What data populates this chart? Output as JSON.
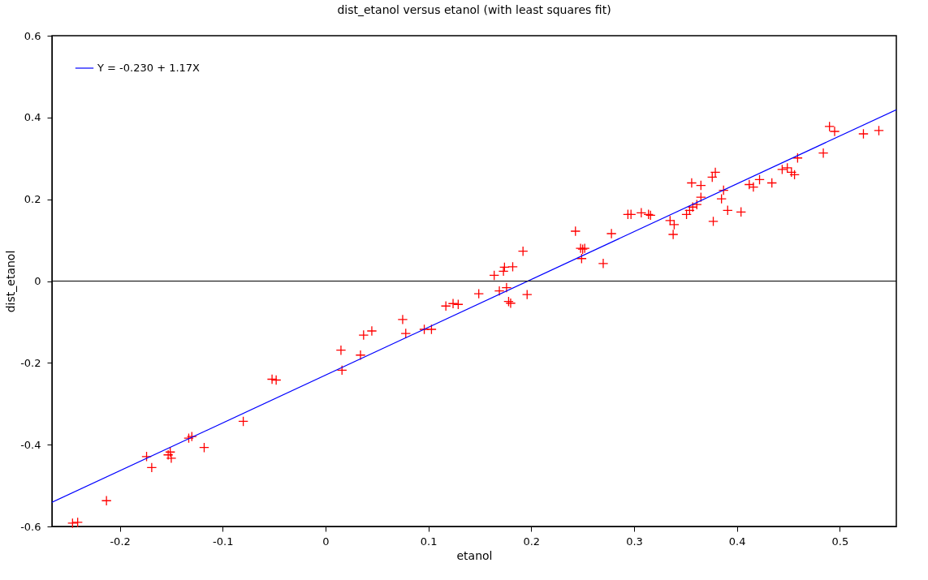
{
  "chart_data": {
    "type": "scatter",
    "title": "dist_etanol versus etanol (with least squares fit)",
    "xlabel": "etanol",
    "ylabel": "dist_etanol",
    "xlim": [
      -0.266,
      0.555
    ],
    "ylim": [
      -0.6,
      0.6
    ],
    "xticks": [
      -0.2,
      -0.1,
      0,
      0.1,
      0.2,
      0.3,
      0.4,
      0.5
    ],
    "yticks": [
      -0.6,
      -0.4,
      -0.2,
      0,
      0.2,
      0.4,
      0.6
    ],
    "grid": false,
    "legend": "top left",
    "ref_lines": [
      {
        "axis": "y",
        "value": 0,
        "color": "#000000"
      }
    ],
    "series": [
      {
        "marker": "cross",
        "color": "#ff0000",
        "x": [
          -0.246,
          -0.241,
          -0.213,
          -0.174,
          -0.169,
          -0.153,
          -0.15,
          -0.151,
          -0.133,
          -0.13,
          -0.118,
          -0.08,
          -0.052,
          -0.048,
          0.015,
          0.016,
          0.034,
          0.037,
          0.045,
          0.075,
          0.078,
          0.096,
          0.103,
          0.117,
          0.124,
          0.129,
          0.149,
          0.164,
          0.173,
          0.174,
          0.182,
          0.169,
          0.176,
          0.178,
          0.18,
          0.196,
          0.192,
          0.243,
          0.248,
          0.25,
          0.252,
          0.249,
          0.27,
          0.278,
          0.294,
          0.297,
          0.307,
          0.314,
          0.316,
          0.335,
          0.339,
          0.338,
          0.351,
          0.354,
          0.357,
          0.361,
          0.365,
          0.356,
          0.365,
          0.376,
          0.379,
          0.377,
          0.387,
          0.385,
          0.391,
          0.404,
          0.412,
          0.416,
          0.422,
          0.434,
          0.444,
          0.449,
          0.453,
          0.456,
          0.459,
          0.484,
          0.49,
          0.495,
          0.523,
          0.538
        ],
        "values": [
          -0.592,
          -0.59,
          -0.537,
          -0.429,
          -0.456,
          -0.425,
          -0.433,
          -0.418,
          -0.384,
          -0.38,
          -0.407,
          -0.343,
          -0.24,
          -0.242,
          -0.169,
          -0.218,
          -0.181,
          -0.132,
          -0.122,
          -0.094,
          -0.128,
          -0.118,
          -0.118,
          -0.061,
          -0.055,
          -0.057,
          -0.031,
          0.014,
          0.024,
          0.034,
          0.035,
          -0.024,
          -0.016,
          -0.05,
          -0.054,
          -0.033,
          0.073,
          0.122,
          0.08,
          0.078,
          0.08,
          0.055,
          0.043,
          0.116,
          0.163,
          0.163,
          0.167,
          0.163,
          0.161,
          0.148,
          0.138,
          0.114,
          0.163,
          0.173,
          0.181,
          0.187,
          0.205,
          0.24,
          0.234,
          0.254,
          0.266,
          0.146,
          0.222,
          0.201,
          0.173,
          0.169,
          0.236,
          0.23,
          0.248,
          0.24,
          0.273,
          0.277,
          0.266,
          0.26,
          0.301,
          0.313,
          0.378,
          0.366,
          0.36,
          0.368
        ]
      },
      {
        "type": "line",
        "name": "Y = -0.230 + 1.17X",
        "color": "#0000ff",
        "line_style": "solid",
        "marker": "none",
        "x": [
          -0.266,
          0.555
        ],
        "values": [
          -0.541,
          0.419
        ]
      }
    ]
  }
}
